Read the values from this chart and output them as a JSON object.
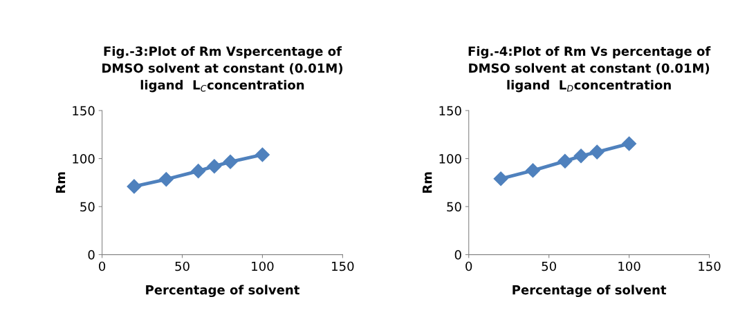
{
  "chart_data": [
    {
      "type": "line",
      "title": "Fig.-3:Plot of Rm Vspercentage of\nDMSO solvent at constant (0.01M)\nligand  L$_{C}$concentration",
      "xlabel": "Percentage of solvent",
      "ylabel": "Rm",
      "x": [
        20,
        40,
        60,
        70,
        80,
        100
      ],
      "series": [
        {
          "color": "#4f81bd",
          "values": [
            71,
            78.4,
            87,
            92,
            96.6,
            104
          ]
        }
      ],
      "xlim": [
        0,
        150
      ],
      "xticks": [
        0,
        50,
        100,
        150
      ],
      "ylim": [
        0,
        150
      ],
      "yticks": [
        0,
        50,
        100,
        150
      ],
      "grid": false,
      "marker": "diamond",
      "line_style": "solid"
    },
    {
      "type": "line",
      "title": "Fig.-4:Plot of Rm Vs percentage of\nDMSO solvent at constant (0.01M)\nligand  L$_{D}$concentration",
      "xlabel": "Percentage of solvent",
      "ylabel": "Rm",
      "x": [
        20,
        40,
        60,
        70,
        80,
        100
      ],
      "series": [
        {
          "color": "#4f81bd",
          "values": [
            79,
            87.6,
            97.3,
            102.7,
            106.8,
            115.5
          ]
        }
      ],
      "xlim": [
        0,
        150
      ],
      "xticks": [
        0,
        50,
        100,
        150
      ],
      "ylim": [
        0,
        150
      ],
      "yticks": [
        0,
        50,
        100,
        150
      ],
      "grid": false,
      "marker": "diamond",
      "line_style": "solid"
    }
  ]
}
